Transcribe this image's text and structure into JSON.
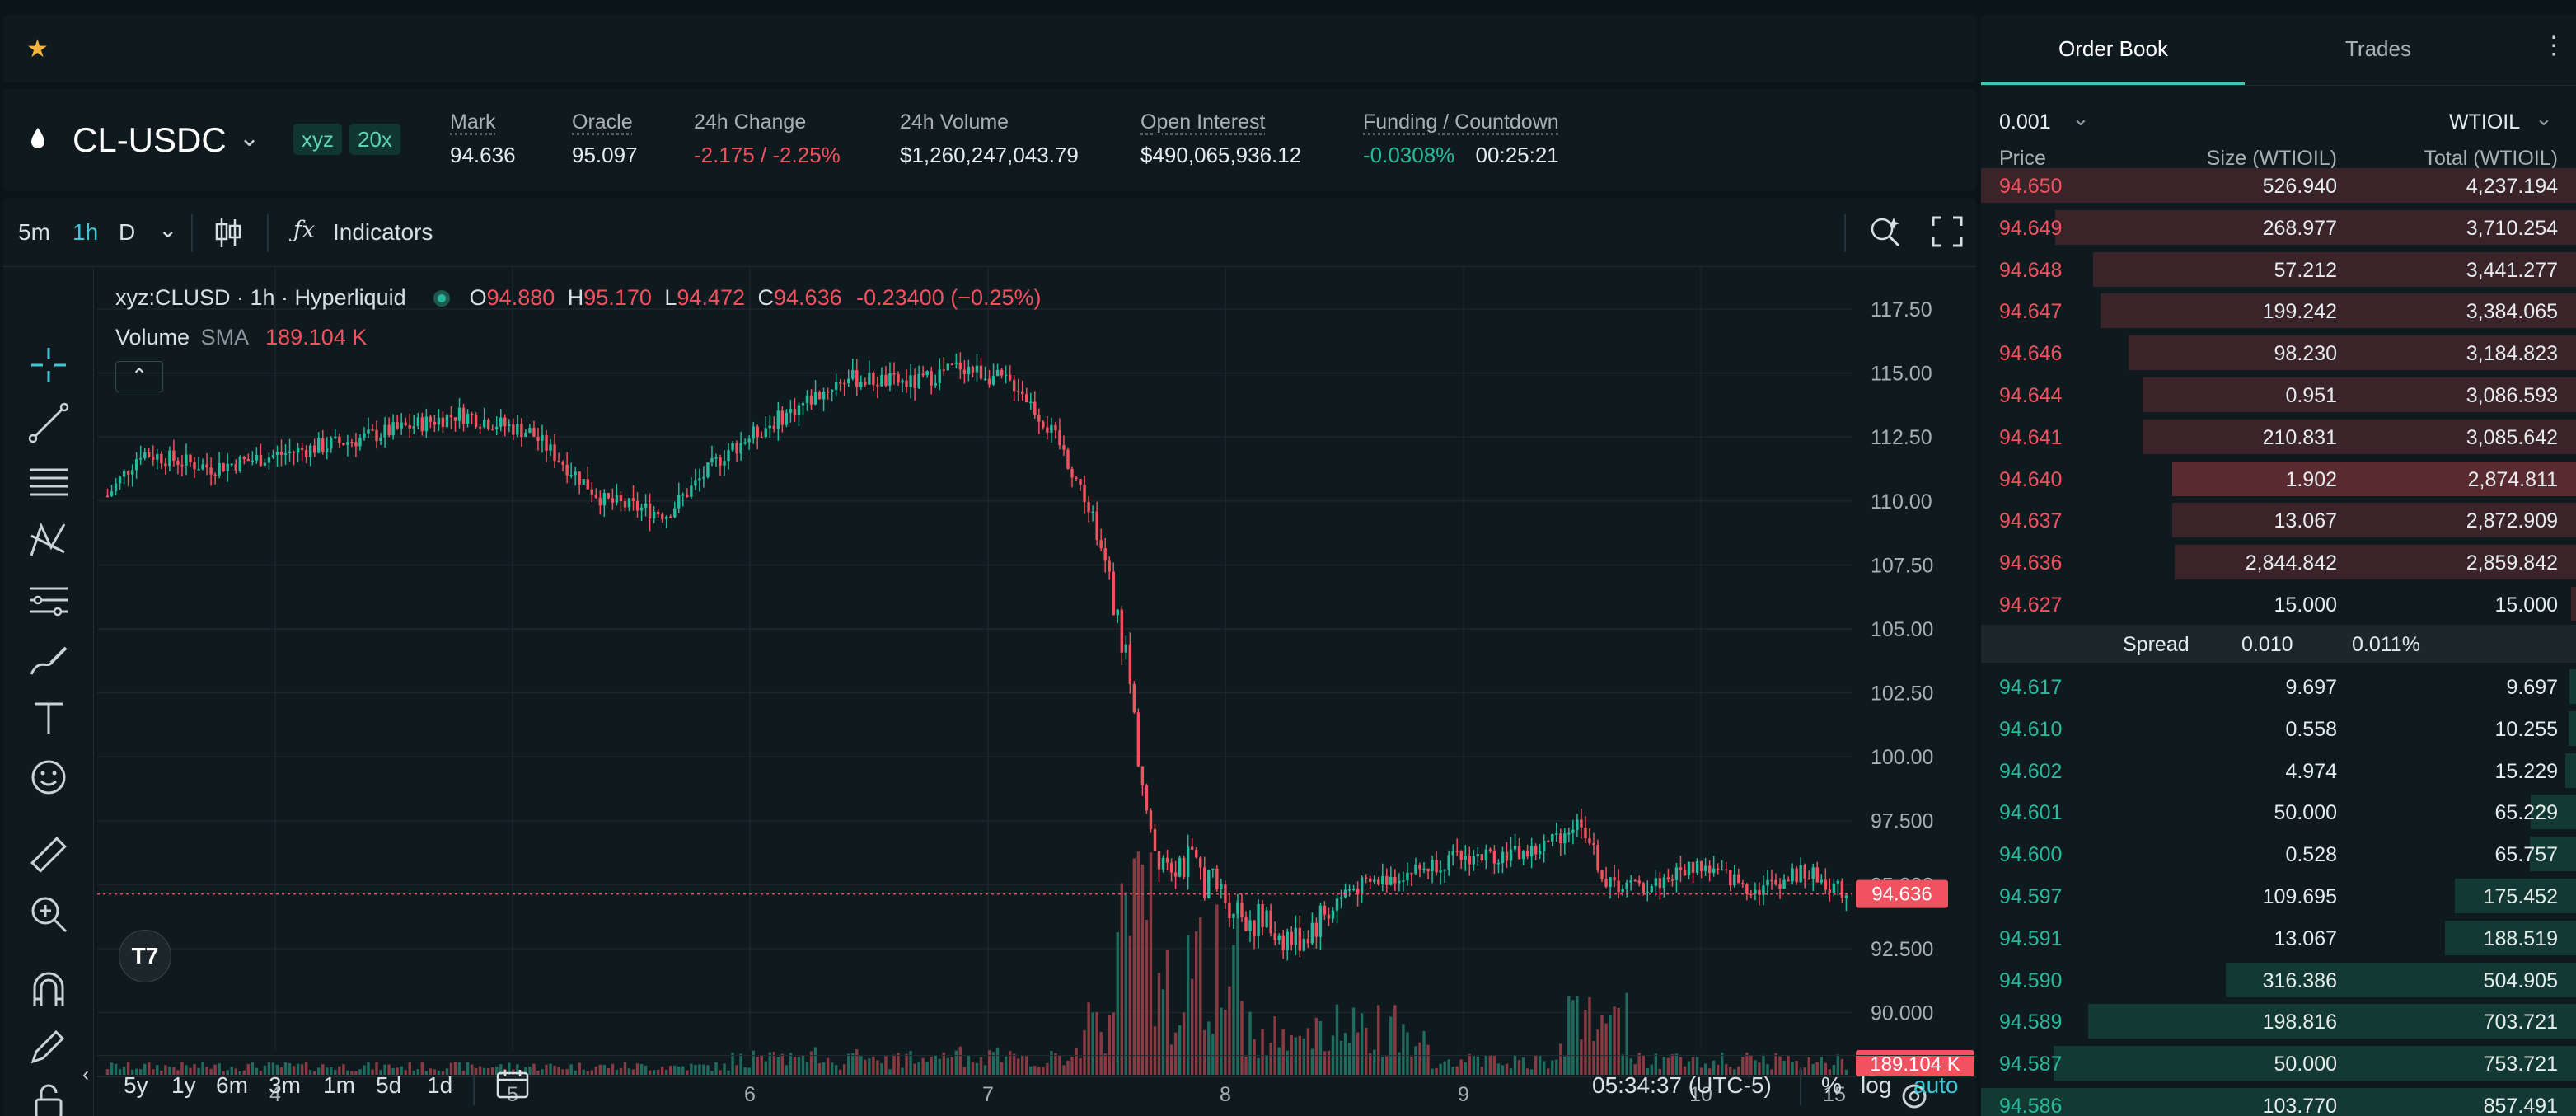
{
  "topbar": {
    "star_icon": "star-icon",
    "star_color": "#f4b43a"
  },
  "market": {
    "symbol": "CL-USDC",
    "badges": [
      "xyz",
      "20x"
    ],
    "stats": [
      {
        "label": "Mark",
        "value": "94.636"
      },
      {
        "label": "Oracle",
        "value": "95.097"
      },
      {
        "label": "24h Change",
        "value": "-2.175 / -2.25%"
      },
      {
        "label": "24h Volume",
        "value": "$1,260,247,043.79"
      },
      {
        "label": "Open Interest",
        "value": "$490,065,936.12"
      },
      {
        "label": "Funding / Countdown",
        "value": "-0.0308%",
        "value2": "00:25:21"
      }
    ]
  },
  "chart_toolbar": {
    "intervals": [
      "5m",
      "1h",
      "D"
    ],
    "active_interval": "1h",
    "indicators_label": "Indicators"
  },
  "legend": {
    "title": "xyz:CLUSD · 1h · Hyperliquid",
    "o_label": "O",
    "o": "94.880",
    "h_label": "H",
    "h": "95.170",
    "l_label": "L",
    "l": "94.472",
    "c_label": "C",
    "c": "94.636",
    "change": "-0.23400 (−0.25%)",
    "volume_label": "Volume",
    "sma_label": "SMA",
    "volume_value": "189.104 K"
  },
  "chart_data": {
    "type": "candlestick",
    "x_ticks": [
      "4",
      "5",
      "6",
      "7",
      "8",
      "9",
      "10",
      "15"
    ],
    "y_ticks": [
      "117.50",
      "115.00",
      "112.50",
      "110.00",
      "107.50",
      "105.00",
      "102.50",
      "100.00",
      "97.500",
      "95.000",
      "92.500",
      "90.000"
    ],
    "ylim": [
      89.5,
      118.5
    ],
    "last_price": "94.636",
    "last_price_value": 94.636,
    "volume_label": "189.104 K",
    "series": [
      {
        "name": "price",
        "keypoints": [
          [
            0,
            110.2
          ],
          [
            8,
            111.9
          ],
          [
            25,
            111.3
          ],
          [
            60,
            112.4
          ],
          [
            85,
            113.4
          ],
          [
            102,
            112.7
          ],
          [
            120,
            110.0
          ],
          [
            135,
            109.5
          ],
          [
            150,
            112.0
          ],
          [
            160,
            113.0
          ],
          [
            178,
            114.8
          ],
          [
            195,
            114.6
          ],
          [
            206,
            115.3
          ],
          [
            220,
            114.5
          ],
          [
            230,
            112.2
          ],
          [
            238,
            109.5
          ],
          [
            246,
            104.0
          ],
          [
            252,
            96.5
          ],
          [
            262,
            95.7
          ],
          [
            275,
            93.8
          ],
          [
            287,
            92.8
          ],
          [
            300,
            94.8
          ],
          [
            325,
            96.0
          ],
          [
            345,
            96.3
          ],
          [
            356,
            97.5
          ],
          [
            362,
            95.0
          ],
          [
            372,
            94.9
          ],
          [
            384,
            95.8
          ],
          [
            398,
            94.8
          ],
          [
            410,
            95.5
          ],
          [
            420,
            94.64
          ]
        ]
      }
    ],
    "volume": {
      "baseline_period": [
        0,
        236
      ],
      "spike_period": [
        240,
        320
      ],
      "late_period": [
        350,
        368
      ]
    }
  },
  "bottom_bar": {
    "ranges": [
      "5y",
      "1y",
      "6m",
      "3m",
      "1m",
      "5d",
      "1d"
    ],
    "time": "05:34:37 (UTC-5)",
    "percent": "%",
    "log": "log",
    "auto": "auto"
  },
  "book": {
    "tabs": [
      "Order Book",
      "Trades"
    ],
    "tick": "0.001",
    "unit": "WTIOIL",
    "headers": [
      "Price",
      "Size (WTIOIL)",
      "Total (WTIOIL)"
    ],
    "asks": [
      {
        "price": "94.650",
        "size": "526.940",
        "total": "4,237.194",
        "depth": 1.0
      },
      {
        "price": "94.649",
        "size": "268.977",
        "total": "3,710.254",
        "depth": 0.876
      },
      {
        "price": "94.648",
        "size": "57.212",
        "total": "3,441.277",
        "depth": 0.812
      },
      {
        "price": "94.647",
        "size": "199.242",
        "total": "3,384.065",
        "depth": 0.799
      },
      {
        "price": "94.646",
        "size": "98.230",
        "total": "3,184.823",
        "depth": 0.752
      },
      {
        "price": "94.644",
        "size": "0.951",
        "total": "3,086.593",
        "depth": 0.728
      },
      {
        "price": "94.641",
        "size": "210.831",
        "total": "3,085.642",
        "depth": 0.728
      },
      {
        "price": "94.640",
        "size": "1.902",
        "total": "2,874.811",
        "depth": 0.678,
        "highlight": true
      },
      {
        "price": "94.637",
        "size": "13.067",
        "total": "2,872.909",
        "depth": 0.678
      },
      {
        "price": "94.636",
        "size": "2,844.842",
        "total": "2,859.842",
        "depth": 0.675
      },
      {
        "price": "94.627",
        "size": "15.000",
        "total": "15.000",
        "depth": 0.004
      }
    ],
    "spread": {
      "label": "Spread",
      "value": "0.010",
      "percent": "0.011%"
    },
    "bids": [
      {
        "price": "94.617",
        "size": "9.697",
        "total": "9.697",
        "depth": 0.011
      },
      {
        "price": "94.610",
        "size": "0.558",
        "total": "10.255",
        "depth": 0.012
      },
      {
        "price": "94.602",
        "size": "4.974",
        "total": "15.229",
        "depth": 0.018
      },
      {
        "price": "94.601",
        "size": "50.000",
        "total": "65.229",
        "depth": 0.076
      },
      {
        "price": "94.600",
        "size": "0.528",
        "total": "65.757",
        "depth": 0.077
      },
      {
        "price": "94.597",
        "size": "109.695",
        "total": "175.452",
        "depth": 0.204
      },
      {
        "price": "94.591",
        "size": "13.067",
        "total": "188.519",
        "depth": 0.22
      },
      {
        "price": "94.590",
        "size": "316.386",
        "total": "504.905",
        "depth": 0.588
      },
      {
        "price": "94.589",
        "size": "198.816",
        "total": "703.721",
        "depth": 0.82
      },
      {
        "price": "94.587",
        "size": "50.000",
        "total": "753.721",
        "depth": 0.878
      },
      {
        "price": "94.586",
        "size": "103.770",
        "total": "857.491",
        "depth": 1.0
      }
    ]
  },
  "colors": {
    "up": "#26b99c",
    "down": "#f0525f",
    "accent": "#3fc7d8"
  }
}
